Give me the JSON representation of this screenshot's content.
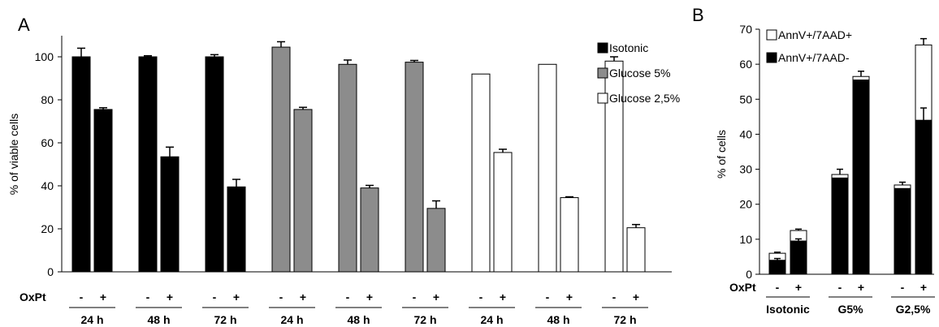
{
  "chart_data": [
    {
      "panel": "A",
      "type": "bar",
      "ylabel": "% of viable cells",
      "ylim": [
        0,
        100
      ],
      "yticks": [
        "0",
        "20",
        "40",
        "60",
        "80",
        "100"
      ],
      "treatment_label": "OxPt",
      "oxpt_signs": [
        "-",
        "+"
      ],
      "time_labels": [
        "24 h",
        "48 h",
        "72 h",
        "24 h",
        "48 h",
        "72 h",
        "24 h",
        "48 h",
        "72 h"
      ],
      "series": [
        {
          "name": "Isotonic",
          "color": "#000000",
          "values": [
            [
              100,
              75.5
            ],
            [
              100,
              53.5
            ],
            [
              100,
              39.5
            ]
          ],
          "errors": [
            [
              4,
              0.8
            ],
            [
              0.5,
              4.5
            ],
            [
              1,
              3.5
            ]
          ]
        },
        {
          "name": "Glucose 5%",
          "color": "#8c8c8c",
          "values": [
            [
              104.5,
              75.5
            ],
            [
              96.5,
              39
            ],
            [
              97.5,
              29.5
            ]
          ],
          "errors": [
            [
              2.5,
              1
            ],
            [
              2,
              1.2
            ],
            [
              0.8,
              3.5
            ]
          ]
        },
        {
          "name": "Glucose 2,5%",
          "color": "#ffffff",
          "values": [
            [
              92,
              55.5
            ],
            [
              96.5,
              34.5
            ],
            [
              98,
              20.5
            ]
          ],
          "errors": [
            [
              0,
              1.5
            ],
            [
              0,
              0.4
            ],
            [
              2,
              1.5
            ]
          ]
        }
      ],
      "legend_position": "top-right",
      "grid": false
    },
    {
      "panel": "B",
      "type": "bar",
      "stacked": true,
      "ylabel": "% of cells",
      "ylim": [
        0,
        70
      ],
      "yticks": [
        "0",
        "10",
        "20",
        "30",
        "40",
        "50",
        "60",
        "70"
      ],
      "treatment_label": "OxPt",
      "oxpt_signs": [
        "-",
        "+"
      ],
      "categories": [
        "Isotonic",
        "G5%",
        "G2,5%"
      ],
      "series": [
        {
          "name": "AnnV+/7AAD-",
          "color": "#000000",
          "values": [
            [
              4,
              9.5
            ],
            [
              27.5,
              55.5
            ],
            [
              24.5,
              44
            ]
          ],
          "errors": [
            [
              0.5,
              0.6
            ],
            [
              0,
              0
            ],
            [
              0,
              3.5
            ]
          ]
        },
        {
          "name": "AnnV+/7AAD+",
          "color": "#ffffff",
          "values": [
            [
              2,
              3
            ],
            [
              1,
              1
            ],
            [
              1,
              21.5
            ]
          ],
          "errors": [
            [
              0.3,
              0.4
            ],
            [
              1.5,
              1.5
            ],
            [
              0.8,
              1.8
            ]
          ]
        }
      ],
      "legend_order": [
        "AnnV+/7AAD+",
        "AnnV+/7AAD-"
      ],
      "legend_position": "top-left",
      "grid": false
    }
  ]
}
